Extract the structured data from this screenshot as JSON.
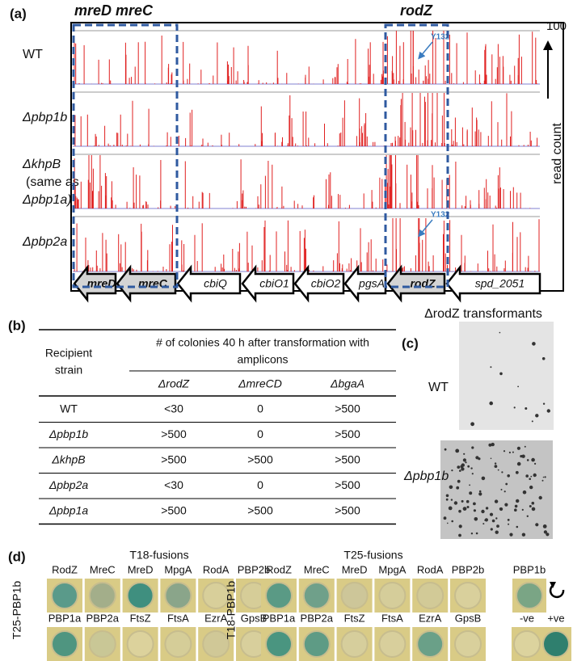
{
  "panel_a": {
    "label": "(a)",
    "region_labels": [
      "mreD mreC",
      "rodZ"
    ],
    "scale_max": 100,
    "axis_label": "read count",
    "tracks": [
      [
        "WT"
      ],
      [
        "Δpbp1b"
      ],
      [
        "ΔkhpB",
        "(same as",
        "Δpbp1a)"
      ],
      [
        "Δpbp2a"
      ]
    ],
    "site_labels": [
      "Y132",
      "Y132"
    ],
    "genes": [
      "mreD",
      "mreC",
      "cbiQ",
      "cbiO1",
      "cbiO2",
      "pgsA",
      "rodZ",
      "spd_2051"
    ]
  },
  "panel_b": {
    "label": "(b)",
    "row_header": [
      "Recipient",
      "strain"
    ],
    "header": [
      "# of colonies 40 h after transformation with",
      "amplicons"
    ],
    "columns": [
      "ΔrodZ",
      "ΔmreCD",
      "ΔbgaA"
    ],
    "rows": [
      [
        "WT",
        "<30",
        "0",
        ">500"
      ],
      [
        "Δpbp1b",
        ">500",
        "0",
        ">500"
      ],
      [
        "ΔkhpB",
        ">500",
        ">500",
        ">500"
      ],
      [
        "Δpbp2a",
        "<30",
        "0",
        ">500"
      ],
      [
        "Δpbp1a",
        ">500",
        ">500",
        ">500"
      ]
    ]
  },
  "panel_c": {
    "label": "(c)",
    "title": "ΔrodZ transformants",
    "plates": [
      "WT",
      "Δpbp1b"
    ]
  },
  "panel_d": {
    "label": "(d)",
    "groups": [
      {
        "title": "T18-fusions",
        "bait": "T25-PBP1b",
        "rows": [
          [
            {
              "name": "RodZ",
              "color": "#5a9a8a"
            },
            {
              "name": "MreC",
              "color": "#a3ae8a"
            },
            {
              "name": "MreD",
              "color": "#3f8f7f"
            },
            {
              "name": "MpgA",
              "color": "#8aa58a"
            },
            {
              "name": "RodA",
              "color": "#d8cf9a"
            },
            {
              "name": "PBP2b",
              "color": "#d6cd98"
            }
          ],
          [
            {
              "name": "PBP1a",
              "color": "#4f9580"
            },
            {
              "name": "PBP2a",
              "color": "#c9c796"
            },
            {
              "name": "FtsZ",
              "color": "#dcd29c"
            },
            {
              "name": "FtsA",
              "color": "#d5cd98"
            },
            {
              "name": "EzrA",
              "color": "#d0c897"
            },
            {
              "name": "GpsB",
              "color": "#d8cf9c"
            }
          ]
        ]
      },
      {
        "title": "T25-fusions",
        "bait": "T18-PBP1b",
        "rows": [
          [
            {
              "name": "RodZ",
              "color": "#5a9a85"
            },
            {
              "name": "MreC",
              "color": "#6fa08a"
            },
            {
              "name": "MreD",
              "color": "#cdc699"
            },
            {
              "name": "MpgA",
              "color": "#d5cd9a"
            },
            {
              "name": "RodA",
              "color": "#d2ca97"
            },
            {
              "name": "PBP2b",
              "color": "#d9d09c"
            }
          ],
          [
            {
              "name": "PBP1a",
              "color": "#4a9580"
            },
            {
              "name": "PBP2a",
              "color": "#5e9b85"
            },
            {
              "name": "FtsZ",
              "color": "#d6ce9c"
            },
            {
              "name": "FtsA",
              "color": "#d8cf9c"
            },
            {
              "name": "EzrA",
              "color": "#6aa088"
            },
            {
              "name": "GpsB",
              "color": "#d9d09c"
            }
          ]
        ]
      }
    ],
    "controls": [
      {
        "name": "PBP1b",
        "color": "#7aa585"
      },
      {
        "name": "-ve",
        "color": "#dcd39e"
      },
      {
        "name": "+ve",
        "color": "#2f7f6e"
      }
    ]
  }
}
